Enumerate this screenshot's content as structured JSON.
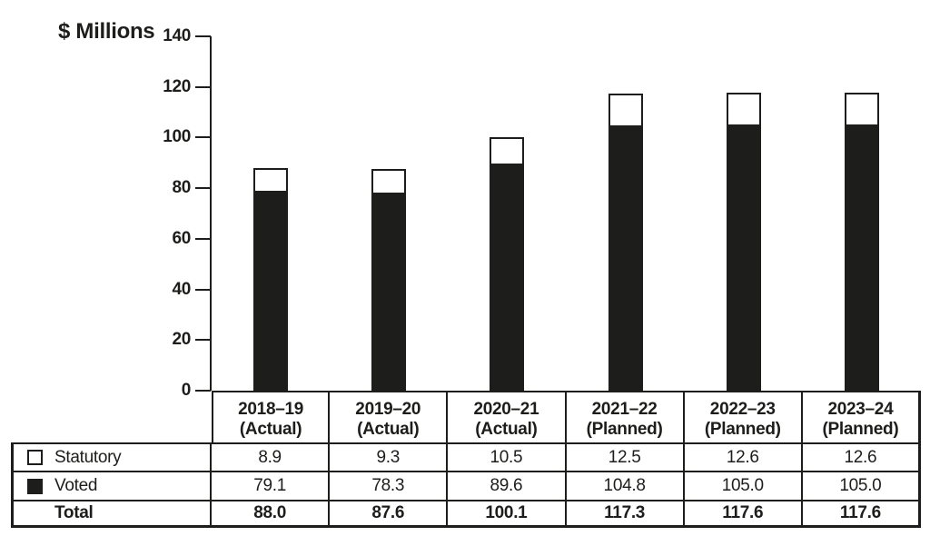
{
  "chart_data": {
    "type": "bar",
    "stacked": true,
    "title": "",
    "xlabel": "",
    "ylabel": "$ Millions",
    "ylim": [
      0,
      140
    ],
    "yticks": [
      140,
      120,
      100,
      80,
      60,
      40,
      20,
      0
    ],
    "grid": false,
    "legend_position": "table-left-column",
    "categories": [
      "2018–19 (Actual)",
      "2019–20 (Actual)",
      "2020–21 (Actual)",
      "2021–22 (Planned)",
      "2022–23 (Planned)",
      "2023–24 (Planned)"
    ],
    "series": [
      {
        "name": "Statutory",
        "fill": "#ffffff",
        "values": [
          8.9,
          9.3,
          10.5,
          12.5,
          12.6,
          12.6
        ]
      },
      {
        "name": "Voted",
        "fill": "#1d1d1b",
        "values": [
          79.1,
          78.3,
          89.6,
          104.8,
          105.0,
          105.0
        ]
      }
    ],
    "totals": [
      88.0,
      87.6,
      100.1,
      117.3,
      117.6,
      117.6
    ]
  },
  "table": {
    "columns": [
      {
        "line1": "2018–19",
        "line2": "(Actual)"
      },
      {
        "line1": "2019–20",
        "line2": "(Actual)"
      },
      {
        "line1": "2020–21",
        "line2": "(Actual)"
      },
      {
        "line1": "2021–22",
        "line2": "(Planned)"
      },
      {
        "line1": "2022–23",
        "line2": "(Planned)"
      },
      {
        "line1": "2023–24",
        "line2": "(Planned)"
      }
    ],
    "rows": [
      {
        "label": "Statutory",
        "values": [
          "8.9",
          "9.3",
          "10.5",
          "12.5",
          "12.6",
          "12.6"
        ]
      },
      {
        "label": "Voted",
        "values": [
          "79.1",
          "78.3",
          "89.6",
          "104.8",
          "105.0",
          "105.0"
        ]
      },
      {
        "label": "Total",
        "values": [
          "88.0",
          "87.6",
          "100.1",
          "117.3",
          "117.6",
          "117.6"
        ]
      }
    ]
  }
}
